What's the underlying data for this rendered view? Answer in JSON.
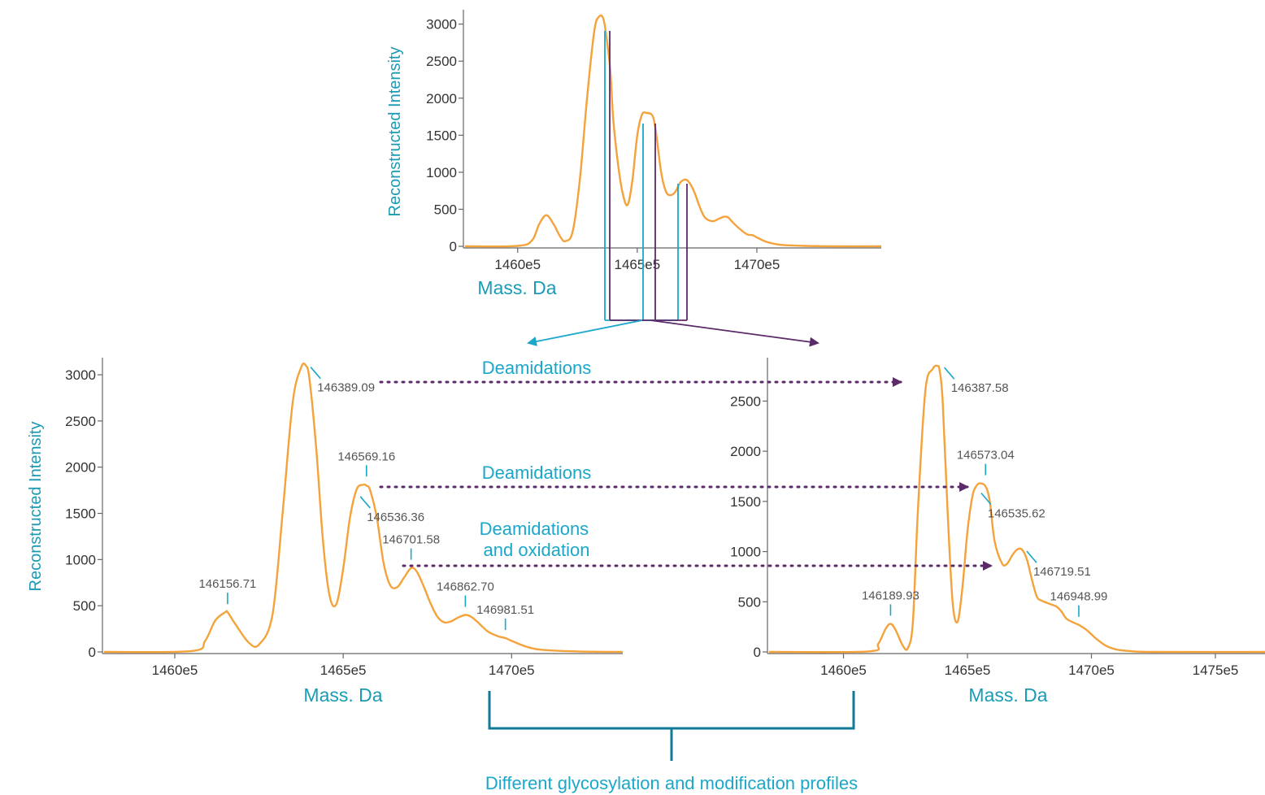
{
  "colors": {
    "trace": "#F4A23A",
    "accent_teal": "#1AA7C9",
    "accent_purple": "#5B2A68",
    "axis_label": "#1A9BB5",
    "bracket": "#127A96",
    "axis": "#666666",
    "tick_text": "#333333"
  },
  "chart_data": [
    {
      "id": "top",
      "type": "line",
      "title": "",
      "xlabel": "Mass. Da",
      "ylabel": "Reconstructed Intensity",
      "xlim": [
        145780,
        147520
      ],
      "ylim": [
        0,
        3150
      ],
      "xticks": [
        146000,
        146500,
        147000
      ],
      "xtick_labels": [
        "1460e5",
        "1465e5",
        "1470e5"
      ],
      "yticks": [
        0,
        500,
        1000,
        1500,
        2000,
        2500,
        3000
      ],
      "grid": false,
      "legend": "none",
      "series": [
        {
          "x": [
            145780,
            146000,
            146060,
            146090,
            146120,
            146150,
            146180,
            146200,
            146230,
            146260,
            146290,
            146320,
            146340,
            146360,
            146380,
            146389,
            146400,
            146420,
            146440,
            146460,
            146480,
            146500,
            146520,
            146540,
            146560,
            146570,
            146580,
            146600,
            146620,
            146640,
            146660,
            146680,
            146702,
            146720,
            146740,
            146760,
            146780,
            146800,
            146820,
            146840,
            146863,
            146880,
            146900,
            146930,
            146960,
            146982,
            147000,
            147040,
            147100,
            147200,
            147300,
            147520
          ],
          "y": [
            0,
            5,
            80,
            300,
            420,
            300,
            120,
            70,
            200,
            900,
            2000,
            2900,
            3100,
            3050,
            2600,
            2300,
            1700,
            1100,
            700,
            560,
            900,
            1500,
            1780,
            1800,
            1780,
            1700,
            1500,
            1000,
            740,
            690,
            740,
            860,
            900,
            850,
            720,
            540,
            400,
            350,
            340,
            370,
            400,
            390,
            320,
            230,
            160,
            150,
            120,
            60,
            20,
            5,
            0,
            0
          ]
        }
      ],
      "annotations": []
    },
    {
      "id": "left",
      "type": "line",
      "title": "",
      "xlabel": "Mass. Da",
      "ylabel": "Reconstructed Intensity",
      "xlim": [
        145790,
        147330
      ],
      "ylim": [
        0,
        3150
      ],
      "xticks": [
        146000,
        146500,
        147000
      ],
      "xtick_labels": [
        "1460e5",
        "1465e5",
        "1470e5"
      ],
      "yticks": [
        0,
        500,
        1000,
        1500,
        2000,
        2500,
        3000
      ],
      "grid": false,
      "legend": "none",
      "series": [
        {
          "x": [
            145790,
            146050,
            146090,
            146120,
            146150,
            146157,
            146180,
            146220,
            146250,
            146290,
            146320,
            146350,
            146375,
            146389,
            146400,
            146420,
            146440,
            146460,
            146480,
            146500,
            146520,
            146540,
            146560,
            146569,
            146580,
            146600,
            146620,
            146640,
            146660,
            146680,
            146702,
            146720,
            146740,
            146760,
            146780,
            146800,
            146820,
            146840,
            146863,
            146880,
            146900,
            146930,
            146960,
            146982,
            147000,
            147050,
            147100,
            147200,
            147330
          ],
          "y": [
            0,
            10,
            120,
            340,
            430,
            430,
            300,
            100,
            80,
            400,
            1500,
            2700,
            3080,
            3100,
            2950,
            2200,
            1200,
            600,
            520,
            900,
            1450,
            1760,
            1810,
            1800,
            1750,
            1450,
            960,
            720,
            700,
            800,
            910,
            860,
            700,
            520,
            380,
            320,
            330,
            370,
            400,
            380,
            320,
            220,
            170,
            150,
            120,
            50,
            20,
            5,
            0
          ]
        }
      ],
      "annotations": [
        {
          "x": 146389.09,
          "y": 3100,
          "label": "146389.09",
          "leader": "diag"
        },
        {
          "x": 146569.16,
          "y": 1810,
          "label": "146569.16",
          "leader": "up"
        },
        {
          "x": 146536.36,
          "y": 1700,
          "label": "146536.36",
          "leader": "diag"
        },
        {
          "x": 146701.58,
          "y": 910,
          "label": "146701.58",
          "leader": "up"
        },
        {
          "x": 146862.7,
          "y": 400,
          "label": "146862.70",
          "leader": "up"
        },
        {
          "x": 146981.51,
          "y": 150,
          "label": "146981.51",
          "leader": "up"
        },
        {
          "x": 146156.71,
          "y": 430,
          "label": "146156.71",
          "leader": "up"
        }
      ]
    },
    {
      "id": "right",
      "type": "line",
      "title": "",
      "xlabel": "Mass. Da",
      "ylabel": "",
      "xlim": [
        145700,
        147700
      ],
      "ylim": [
        0,
        2900
      ],
      "xticks": [
        146000,
        146500,
        147000,
        147500
      ],
      "xtick_labels": [
        "1460e5",
        "1465e5",
        "1470e5",
        "1475e5"
      ],
      "yticks": [
        0,
        500,
        1000,
        1500,
        2000,
        2500
      ],
      "grid": false,
      "legend": "none",
      "series": [
        {
          "x": [
            145700,
            146100,
            146140,
            146170,
            146190,
            146210,
            146240,
            146260,
            146280,
            146300,
            146330,
            146360,
            146380,
            146388,
            146400,
            146420,
            146440,
            146460,
            146480,
            146500,
            146520,
            146535,
            146550,
            146573,
            146590,
            146610,
            146640,
            146660,
            146680,
            146700,
            146720,
            146740,
            146760,
            146780,
            146800,
            146830,
            146860,
            146880,
            146900,
            146930,
            146949,
            146980,
            147020,
            147060,
            147100,
            147150,
            147250,
            147700
          ],
          "y": [
            0,
            5,
            80,
            230,
            280,
            220,
            60,
            40,
            300,
            1400,
            2600,
            2820,
            2850,
            2800,
            2500,
            1400,
            500,
            300,
            650,
            1200,
            1550,
            1650,
            1680,
            1650,
            1500,
            1100,
            880,
            880,
            960,
            1020,
            1020,
            920,
            720,
            550,
            510,
            480,
            450,
            400,
            330,
            290,
            270,
            220,
            130,
            60,
            25,
            10,
            0,
            0
          ]
        }
      ],
      "annotations": [
        {
          "x": 146387.58,
          "y": 2850,
          "label": "146387.58",
          "leader": "diag"
        },
        {
          "x": 146573.04,
          "y": 1680,
          "label": "146573.04",
          "leader": "up"
        },
        {
          "x": 146535.62,
          "y": 1600,
          "label": "146535.62",
          "leader": "diag"
        },
        {
          "x": 146719.51,
          "y": 1020,
          "label": "146719.51",
          "leader": "diag"
        },
        {
          "x": 146948.99,
          "y": 270,
          "label": "146948.99",
          "leader": "up"
        },
        {
          "x": 146189.93,
          "y": 280,
          "label": "146189.93",
          "leader": "up"
        }
      ]
    }
  ],
  "arrow_labels": [
    {
      "lines": [
        "Deamidations"
      ]
    },
    {
      "lines": [
        "Deamidations"
      ]
    },
    {
      "lines": [
        "Deamidations",
        "and oxidation"
      ]
    }
  ],
  "bracket_caption": "Different glycosylation and modification profiles"
}
